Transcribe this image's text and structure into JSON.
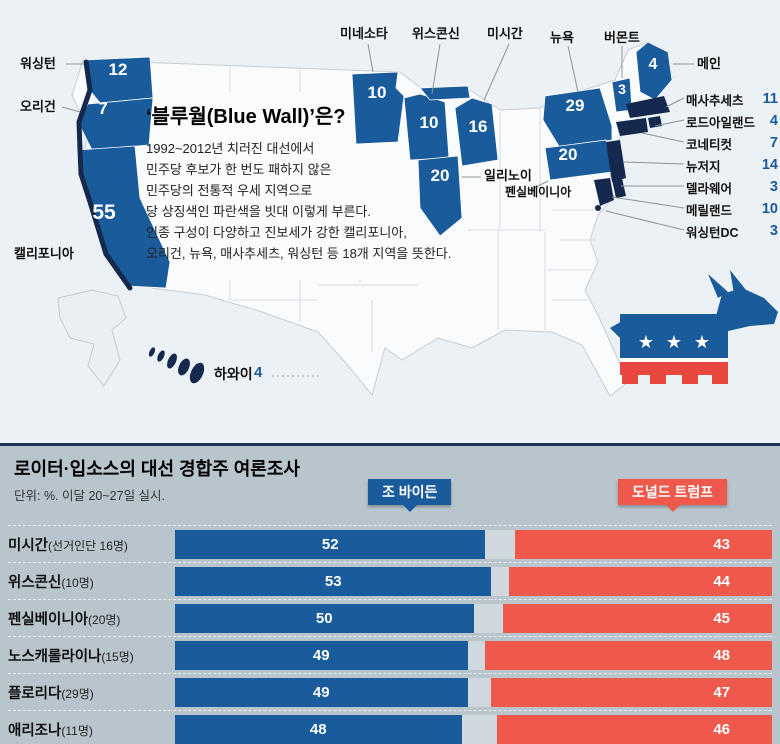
{
  "map_section": {
    "title": "‘블루월(Blue Wall)’은?",
    "desc": [
      "1992~2012년 치러진 대선에서",
      "민주당 후보가 한 번도 패하지 않은",
      "민주당의 전통적 우세 지역으로",
      "당 상징색인 파란색을 빗대 이렇게 부른다.",
      "인종 구성이 다양하고 진보세가 강한 캘리포니아,",
      "오리건, 뉴욕, 매사추세츠, 워싱턴 등 18개 지역을 뜻한다."
    ],
    "states": {
      "washington": {
        "label": "워싱턴",
        "votes": "12"
      },
      "oregon": {
        "label": "오리건",
        "votes": "7"
      },
      "california": {
        "label": "캘리포니아",
        "votes": "55"
      },
      "minnesota": {
        "label": "미네소타",
        "votes": "10"
      },
      "wisconsin": {
        "label": "위스콘신",
        "votes": "10"
      },
      "michigan": {
        "label": "미시간",
        "votes": "16"
      },
      "illinois": {
        "label": "일리노이",
        "votes": "20"
      },
      "new_york": {
        "label": "뉴욕",
        "votes": "29"
      },
      "pennsylvania": {
        "label": "펜실베이니아",
        "votes": "20"
      },
      "vermont": {
        "label": "버몬트",
        "votes": "3"
      },
      "maine": {
        "label": "메인",
        "votes": "4"
      },
      "massachusetts": {
        "label": "매사추세츠",
        "votes": "11"
      },
      "rhode_island": {
        "label": "로드아일랜드",
        "votes": "4"
      },
      "connecticut": {
        "label": "코네티컷",
        "votes": "7"
      },
      "new_jersey": {
        "label": "뉴저지",
        "votes": "14"
      },
      "delaware": {
        "label": "델라웨어",
        "votes": "3"
      },
      "maryland": {
        "label": "메릴랜드",
        "votes": "10"
      },
      "washington_dc": {
        "label": "워싱턴DC",
        "votes": "3"
      },
      "hawaii": {
        "label": "하와이",
        "votes": "4"
      }
    },
    "colors": {
      "blue": "#1a5b9c",
      "navy": "#15294e",
      "red": "#e8483e"
    }
  },
  "icons": {
    "star": "★"
  },
  "poll": {
    "title": "로이터·입소스의 대선 경합주 여론조사",
    "subtitle": "단위: %. 이달 20~27일 실시.",
    "legend": {
      "biden": "조 바이든",
      "trump": "도널드 트럼프"
    },
    "rows": [
      {
        "name": "미시간",
        "note": "(선거인단 16명)",
        "biden": 52,
        "trump": 43
      },
      {
        "name": "위스콘신",
        "note": "(10명)",
        "biden": 53,
        "trump": 44
      },
      {
        "name": "펜실베이니아",
        "note": "(20명)",
        "biden": 50,
        "trump": 45
      },
      {
        "name": "노스캐롤라이나",
        "note": "(15명)",
        "biden": 49,
        "trump": 48
      },
      {
        "name": "플로리다",
        "note": "(29명)",
        "biden": 49,
        "trump": 47
      },
      {
        "name": "애리조나",
        "note": "(11명)",
        "biden": 48,
        "trump": 46
      }
    ]
  },
  "chart_data": {
    "type": "bar",
    "orientation": "horizontal",
    "title": "로이터·입소스의 대선 경합주 여론조사",
    "subtitle": "단위: %. 이달 20~27일 실시.",
    "categories": [
      "미시간(선거인단 16명)",
      "위스콘신(10명)",
      "펜실베이니아(20명)",
      "노스캐롤라이나(15명)",
      "플로리다(29명)",
      "애리조나(11명)"
    ],
    "series": [
      {
        "name": "조 바이든",
        "color": "#1a5b9c",
        "values": [
          52,
          53,
          50,
          49,
          49,
          48
        ]
      },
      {
        "name": "도널드 트럼프",
        "color": "#ee594c",
        "values": [
          43,
          44,
          45,
          48,
          47,
          46
        ]
      }
    ],
    "xlim": [
      0,
      100
    ],
    "unit": "%",
    "legend_position": "top",
    "grid": false
  }
}
